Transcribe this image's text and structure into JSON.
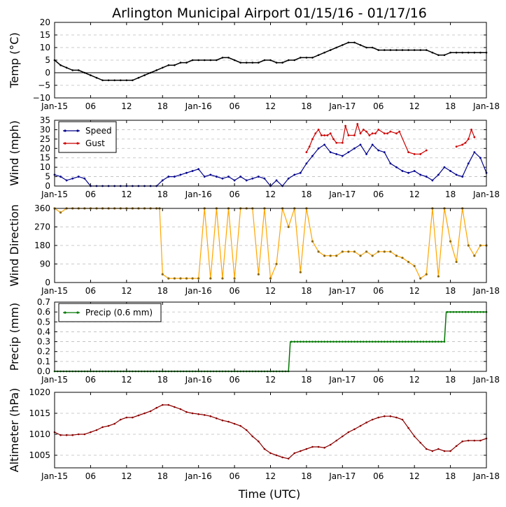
{
  "title": "Arlington Municipal Airport 01/15/16 - 01/17/16",
  "xlabel": "Time (UTC)",
  "x_ticks": [
    "Jan-15",
    "06",
    "12",
    "18",
    "Jan-16",
    "06",
    "12",
    "18",
    "Jan-17",
    "06",
    "12",
    "18",
    "Jan-18"
  ],
  "x_range_hours": [
    0,
    72
  ],
  "colors": {
    "temp": "#000000",
    "speed": "#00008b",
    "gust": "#cc0000",
    "dir_line": "#ffa500",
    "dir_marker": "#8b6914",
    "precip": "#007700",
    "alt": "#8b0000",
    "grid": "#bbbbbb"
  },
  "chart_data": [
    {
      "type": "line",
      "ylabel": "Temp (°C)",
      "ylim": [
        -10,
        20
      ],
      "yticks": [
        -10,
        -5,
        0,
        5,
        10,
        15,
        20
      ],
      "zero_line": true,
      "grid": true,
      "series": [
        {
          "x": [
            0,
            1,
            2,
            3,
            4,
            5,
            6,
            7,
            8,
            9,
            10,
            11,
            12,
            13,
            14,
            15,
            16,
            17,
            18,
            19,
            20,
            21,
            22,
            23,
            24,
            25,
            26,
            27,
            28,
            29,
            30,
            31,
            32,
            33,
            34,
            35,
            36,
            37,
            38,
            39,
            40,
            41,
            42,
            43,
            44,
            45,
            46,
            47,
            48,
            49,
            50,
            51,
            52,
            53,
            54,
            55,
            56,
            57,
            58,
            59,
            60,
            61,
            62,
            63,
            64,
            65,
            66,
            67,
            68,
            69,
            70,
            71,
            72
          ],
          "values": [
            5,
            3,
            2,
            1,
            1,
            0,
            -1,
            -2,
            -3,
            -3,
            -3,
            -3,
            -3,
            -3,
            -2,
            -1,
            0,
            1,
            2,
            3,
            3,
            4,
            4,
            5,
            5,
            5,
            5,
            5,
            6,
            6,
            5,
            4,
            4,
            4,
            4,
            5,
            5,
            4,
            4,
            5,
            5,
            6,
            6,
            6,
            7,
            8,
            9,
            10,
            11,
            12,
            12,
            11,
            10,
            10,
            9,
            9,
            9,
            9,
            9,
            9,
            9,
            9,
            9,
            8,
            7,
            7,
            8,
            8,
            8,
            8,
            8,
            8,
            8
          ]
        }
      ]
    },
    {
      "type": "line",
      "ylabel": "Wind (mph)",
      "ylim": [
        0,
        35
      ],
      "yticks": [
        0,
        5,
        10,
        15,
        20,
        25,
        30,
        35
      ],
      "grid": true,
      "legend": "top-left",
      "series": [
        {
          "name": "Speed",
          "x": [
            0,
            1,
            2,
            3,
            4,
            5,
            6,
            7,
            8,
            9,
            10,
            11,
            12,
            13,
            14,
            15,
            16,
            17,
            18,
            19,
            20,
            21,
            22,
            23,
            24,
            25,
            26,
            27,
            28,
            29,
            30,
            31,
            32,
            33,
            34,
            35,
            36,
            37,
            38,
            39,
            40,
            41,
            42,
            43,
            44,
            45,
            46,
            47,
            48,
            49,
            50,
            51,
            52,
            53,
            54,
            55,
            56,
            57,
            58,
            59,
            60,
            61,
            62,
            63,
            64,
            65,
            66,
            67,
            68,
            69,
            70,
            71,
            72
          ],
          "values": [
            6,
            5,
            3,
            4,
            5,
            4,
            0,
            0,
            0,
            0,
            0,
            0,
            0,
            0,
            0,
            0,
            0,
            0,
            3,
            5,
            5,
            6,
            7,
            8,
            9,
            5,
            6,
            5,
            4,
            5,
            3,
            5,
            3,
            4,
            5,
            4,
            0,
            3,
            0,
            4,
            6,
            7,
            12,
            16,
            20,
            22,
            18,
            17,
            16,
            18,
            20,
            22,
            17,
            22,
            19,
            18,
            12,
            10,
            8,
            7,
            8,
            6,
            5,
            3,
            6,
            10,
            8,
            6,
            5,
            12,
            18,
            15,
            7
          ]
        },
        {
          "name": "Gust",
          "x": [
            42,
            42.5,
            43,
            43.5,
            44,
            44.5,
            45,
            45.5,
            46,
            46.5,
            47,
            48,
            48.5,
            49,
            50,
            50.5,
            51,
            51.5,
            52,
            52.5,
            53,
            53.5,
            54,
            55,
            55.5,
            56,
            57,
            57.5,
            59,
            60,
            61,
            62,
            67,
            68,
            68.5,
            69,
            69.5,
            70
          ],
          "values": [
            18,
            21,
            25,
            28,
            30,
            27,
            27,
            27,
            28,
            25,
            23,
            23,
            32,
            27,
            27,
            33,
            28,
            30,
            29,
            27,
            28,
            28,
            30,
            28,
            28,
            29,
            28,
            29,
            18,
            17,
            17,
            19,
            21,
            22,
            23,
            25,
            30,
            26
          ]
        }
      ]
    },
    {
      "type": "scatter",
      "ylabel": "Wind Direction",
      "ylim": [
        0,
        360
      ],
      "yticks": [
        0,
        90,
        180,
        270,
        360
      ],
      "grid": true,
      "series": [
        {
          "x": [
            0,
            1,
            2,
            3,
            4,
            5,
            6,
            7,
            8,
            9,
            10,
            11,
            12,
            13,
            14,
            15,
            16,
            17,
            17.5,
            18,
            19,
            20,
            21,
            22,
            23,
            24,
            25,
            26,
            27,
            28,
            29,
            30,
            31,
            32,
            33,
            34,
            35,
            36,
            37,
            38,
            39,
            40,
            41,
            42,
            43,
            44,
            45,
            46,
            47,
            48,
            49,
            50,
            51,
            52,
            53,
            54,
            55,
            56,
            57,
            58,
            59,
            60,
            61,
            62,
            63,
            64,
            65,
            66,
            67,
            68,
            69,
            70,
            71,
            72
          ],
          "values": [
            360,
            340,
            360,
            360,
            360,
            360,
            360,
            360,
            360,
            360,
            360,
            360,
            360,
            360,
            360,
            360,
            360,
            360,
            360,
            40,
            20,
            20,
            20,
            20,
            20,
            20,
            360,
            20,
            360,
            20,
            360,
            20,
            360,
            360,
            360,
            40,
            360,
            20,
            90,
            360,
            270,
            360,
            50,
            360,
            200,
            150,
            130,
            130,
            130,
            150,
            150,
            150,
            130,
            150,
            130,
            150,
            150,
            150,
            130,
            120,
            100,
            80,
            20,
            40,
            360,
            30,
            360,
            200,
            100,
            360,
            180,
            130,
            180,
            180
          ]
        }
      ]
    },
    {
      "type": "line",
      "ylabel": "Precip (mm)",
      "ylim": [
        0,
        0.7
      ],
      "yticks": [
        0.0,
        0.1,
        0.2,
        0.3,
        0.4,
        0.5,
        0.6,
        0.7
      ],
      "grid": true,
      "legend": "top-left",
      "series": [
        {
          "name": "Precip (0.6 mm)",
          "x": [
            0,
            39,
            39.3,
            65,
            65.3,
            72
          ],
          "values": [
            0,
            0,
            0.3,
            0.3,
            0.6,
            0.6
          ]
        }
      ]
    },
    {
      "type": "line",
      "ylabel": "Altimeter (hPa)",
      "ylim": [
        1002,
        1020
      ],
      "yticks": [
        1005,
        1010,
        1015,
        1020
      ],
      "grid": true,
      "series": [
        {
          "x": [
            0,
            1,
            2,
            3,
            4,
            5,
            6,
            7,
            8,
            9,
            10,
            11,
            12,
            13,
            14,
            15,
            16,
            17,
            18,
            19,
            20,
            21,
            22,
            23,
            24,
            25,
            26,
            27,
            28,
            29,
            30,
            31,
            32,
            33,
            34,
            35,
            36,
            37,
            38,
            39,
            40,
            41,
            42,
            43,
            44,
            45,
            46,
            47,
            48,
            49,
            50,
            51,
            52,
            53,
            54,
            55,
            56,
            57,
            58,
            59,
            60,
            61,
            62,
            63,
            64,
            65,
            66,
            67,
            68,
            69,
            70,
            71,
            72
          ],
          "values": [
            1010.5,
            1009.8,
            1009.8,
            1009.8,
            1010,
            1010,
            1010.5,
            1011,
            1011.7,
            1012,
            1012.5,
            1013.5,
            1014,
            1014,
            1014.5,
            1015,
            1015.5,
            1016.3,
            1017,
            1017,
            1016.5,
            1016,
            1015.3,
            1015,
            1014.8,
            1014.6,
            1014.3,
            1013.8,
            1013.3,
            1013,
            1012.5,
            1012,
            1011,
            1009.5,
            1008.3,
            1006.5,
            1005.5,
            1005,
            1004.5,
            1004.2,
            1005.5,
            1006,
            1006.5,
            1007,
            1007,
            1006.8,
            1007.5,
            1008.5,
            1009.5,
            1010.5,
            1011.2,
            1012,
            1012.8,
            1013.5,
            1014,
            1014.3,
            1014.3,
            1014,
            1013.5,
            1011.5,
            1009.5,
            1008,
            1006.5,
            1006,
            1006.5,
            1006,
            1006,
            1007.2,
            1008.3,
            1008.5,
            1008.5,
            1008.5,
            1009
          ]
        }
      ]
    }
  ]
}
